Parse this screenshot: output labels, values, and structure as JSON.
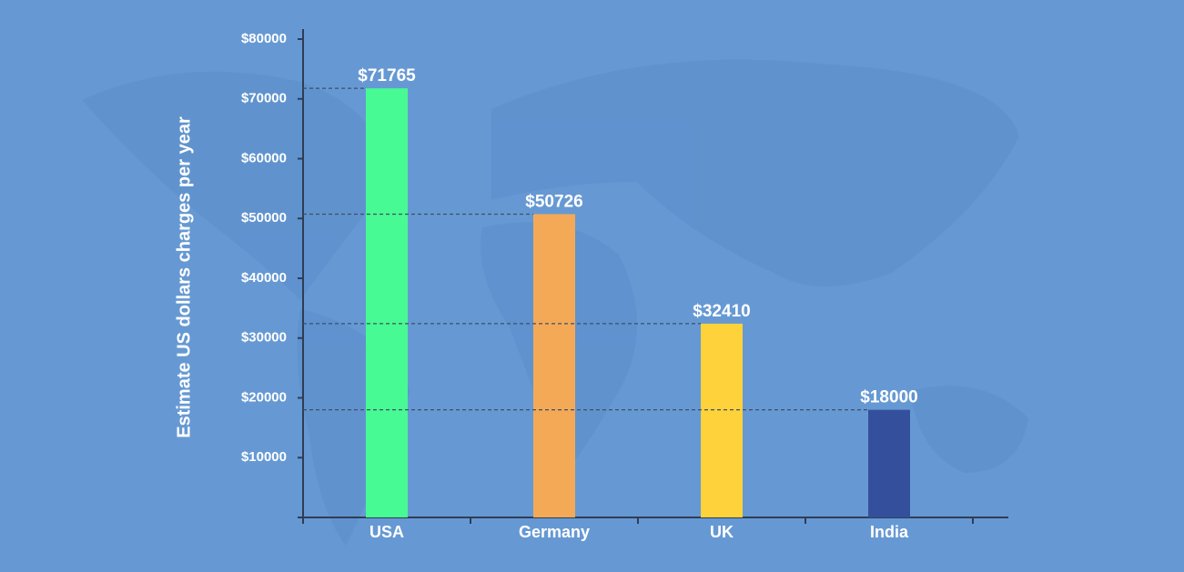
{
  "chart_data": {
    "type": "bar",
    "y_label": "Estimate US dollars charges per year",
    "categories": [
      "USA",
      "Germany",
      "UK",
      "India"
    ],
    "values": [
      71765,
      50726,
      32410,
      18000
    ],
    "value_labels": [
      "$71765",
      "$50726",
      "$32410",
      "$18000"
    ],
    "colors": [
      "#48fa93",
      "#f4a957",
      "#fdd23a",
      "#34509c"
    ],
    "ylim": [
      0,
      80000
    ],
    "yticks": [
      {
        "value": 10000,
        "label": "$10000"
      },
      {
        "value": 20000,
        "label": "$20000"
      },
      {
        "value": 30000,
        "label": "$30000"
      },
      {
        "value": 40000,
        "label": "$40000"
      },
      {
        "value": 50000,
        "label": "$50000"
      },
      {
        "value": 60000,
        "label": "$60000"
      },
      {
        "value": 70000,
        "label": "$70000"
      },
      {
        "value": 80000,
        "label": "$80000"
      }
    ],
    "grid": false
  }
}
